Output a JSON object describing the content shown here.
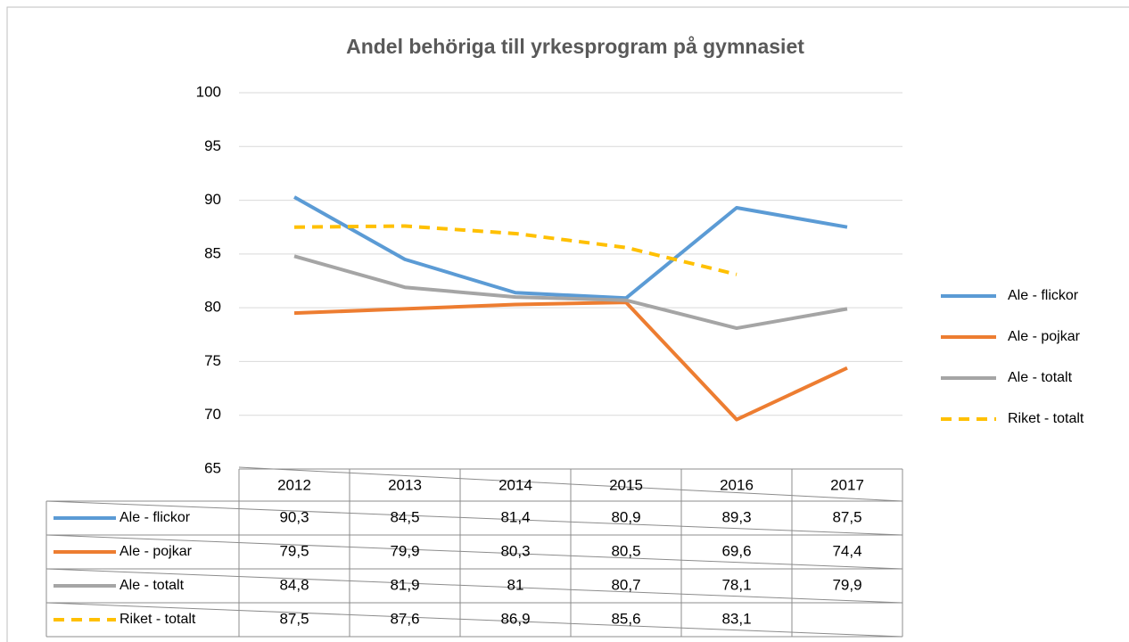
{
  "chart_data": {
    "type": "line",
    "title": "Andel behöriga till yrkesprogram på gymnasiet",
    "categories": [
      "2012",
      "2013",
      "2014",
      "2015",
      "2016",
      "2017"
    ],
    "series": [
      {
        "name": "Ale - flickor",
        "color": "#5b9bd5",
        "dash": false,
        "values": [
          90.3,
          84.5,
          81.4,
          80.9,
          89.3,
          87.5
        ],
        "value_labels": [
          "90,3",
          "84,5",
          "81,4",
          "80,9",
          "89,3",
          "87,5"
        ]
      },
      {
        "name": "Ale - pojkar",
        "color": "#ed7d31",
        "dash": false,
        "values": [
          79.5,
          79.9,
          80.3,
          80.5,
          69.6,
          74.4
        ],
        "value_labels": [
          "79,5",
          "79,9",
          "80,3",
          "80,5",
          "69,6",
          "74,4"
        ]
      },
      {
        "name": "Ale - totalt",
        "color": "#a5a5a5",
        "dash": false,
        "values": [
          84.8,
          81.9,
          81,
          80.7,
          78.1,
          79.9
        ],
        "value_labels": [
          "84,8",
          "81,9",
          "81",
          "80,7",
          "78,1",
          "79,9"
        ]
      },
      {
        "name": "Riket - totalt",
        "color": "#ffc000",
        "dash": true,
        "values": [
          87.5,
          87.6,
          86.9,
          85.6,
          83.1,
          null
        ],
        "value_labels": [
          "87,5",
          "87,6",
          "86,9",
          "85,6",
          "83,1",
          null
        ]
      }
    ],
    "ylim": [
      65,
      100
    ],
    "yticks": [
      65,
      70,
      75,
      80,
      85,
      90,
      95,
      100
    ],
    "grid": true,
    "legend": "right",
    "data_table": true
  }
}
